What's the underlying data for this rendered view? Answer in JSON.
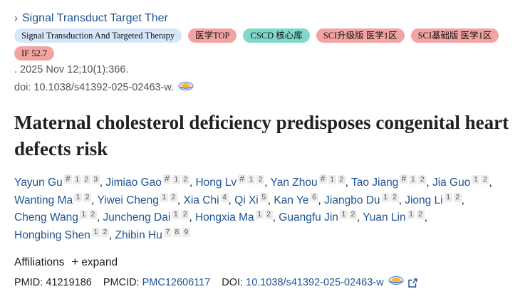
{
  "journal": {
    "abbr": "Signal Transduct Target Ther",
    "badges": [
      {
        "text": "Signal Transduction And Targeted Therapy",
        "color": "#d6e7fb"
      },
      {
        "text": "医学TOP",
        "color": "#f4a3a3"
      },
      {
        "text": "CSCD 核心库",
        "color": "#7fd8c8"
      },
      {
        "text": "SCI升级版 医学1区",
        "color": "#f4a3a3"
      },
      {
        "text": "SCI基础版 医学1区",
        "color": "#f4a3a3"
      },
      {
        "text": "IF 52.7",
        "color": "#f4a3a3"
      }
    ]
  },
  "pubdate": ". 2025 Nov 12;10(1):366.",
  "doi_line": "doi: 10.1038/s41392-025-02463-w.",
  "title": "Maternal cholesterol deficiency predisposes congenital heart defects risk",
  "authors": [
    {
      "name": "Yayun Gu",
      "sups": [
        "#",
        "1",
        "2",
        "3"
      ]
    },
    {
      "name": "Jimiao Gao",
      "sups": [
        "#",
        "1",
        "2"
      ]
    },
    {
      "name": "Hong Lv",
      "sups": [
        "#",
        "1",
        "2"
      ]
    },
    {
      "name": "Yan Zhou",
      "sups": [
        "#",
        "1",
        "2"
      ]
    },
    {
      "name": "Tao Jiang",
      "sups": [
        "#",
        "1",
        "2"
      ]
    },
    {
      "name": "Jia Guo",
      "sups": [
        "1",
        "2"
      ]
    },
    {
      "name": "Wanting Ma",
      "sups": [
        "1",
        "2"
      ]
    },
    {
      "name": "Yiwei Cheng",
      "sups": [
        "1",
        "2"
      ]
    },
    {
      "name": "Xia Chi",
      "sups": [
        "4"
      ]
    },
    {
      "name": "Qi Xi",
      "sups": [
        "5"
      ]
    },
    {
      "name": "Kan Ye",
      "sups": [
        "6"
      ]
    },
    {
      "name": "Jiangbo Du",
      "sups": [
        "1",
        "2"
      ]
    },
    {
      "name": "Jiong Li",
      "sups": [
        "1",
        "2"
      ]
    },
    {
      "name": "Cheng Wang",
      "sups": [
        "1",
        "2"
      ]
    },
    {
      "name": "Juncheng Dai",
      "sups": [
        "1",
        "2"
      ]
    },
    {
      "name": "Hongxia Ma",
      "sups": [
        "1",
        "2"
      ]
    },
    {
      "name": "Guangfu Jin",
      "sups": [
        "1",
        "2"
      ]
    },
    {
      "name": "Yuan Lin",
      "sups": [
        "1",
        "2"
      ]
    },
    {
      "name": "Hongbing Shen",
      "sups": [
        "1",
        "2"
      ]
    },
    {
      "name": "Zhibin Hu",
      "sups": [
        "7",
        "8",
        "9"
      ]
    }
  ],
  "affiliations": {
    "label": "Affiliations",
    "expand": "expand"
  },
  "ids": {
    "pmid_label": "PMID:",
    "pmid": "41219186",
    "pmcid_label": "PMCID:",
    "pmcid": "PMC12606117",
    "doi_label": "DOI:",
    "doi": "10.1038/s41392-025-02463-w"
  },
  "icons": {
    "journal_chevron": "chevron-right-icon",
    "scholar": "google-scholar-icon",
    "external": "external-link-icon"
  }
}
